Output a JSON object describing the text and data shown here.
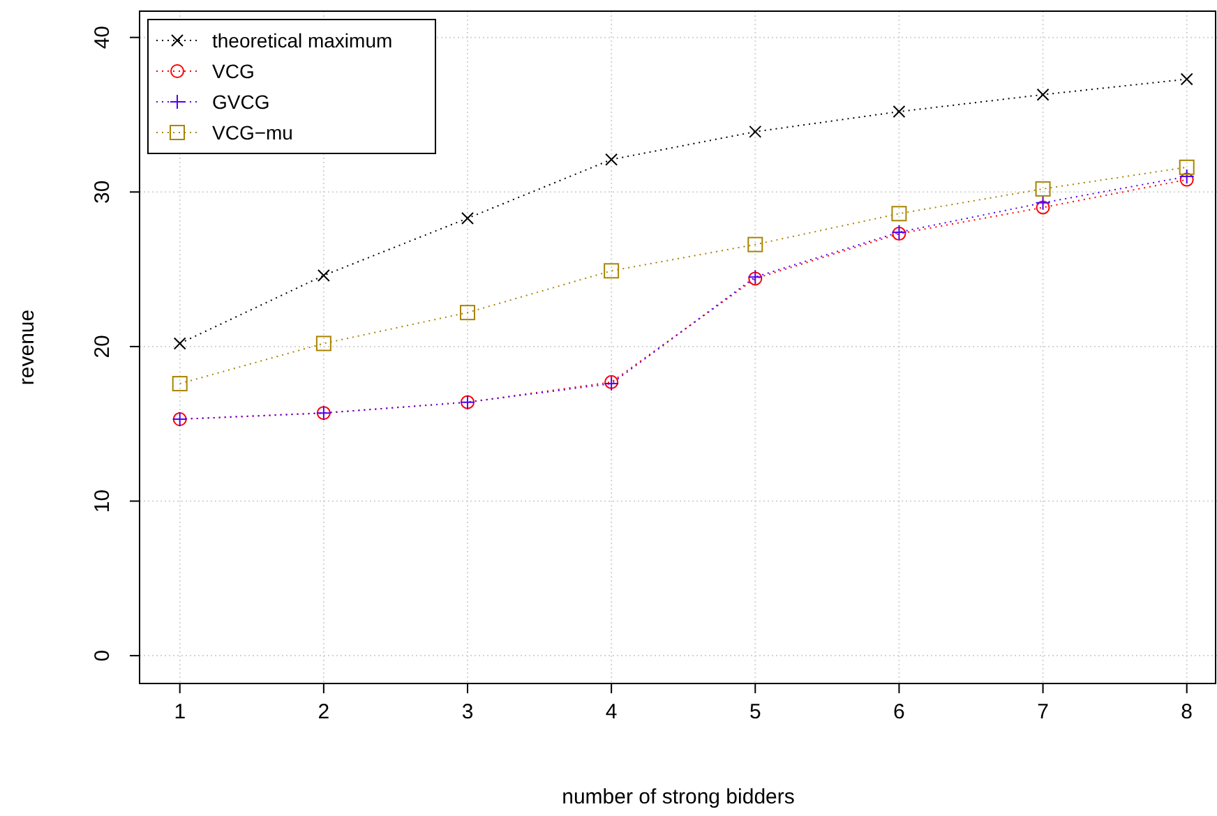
{
  "chart_data": {
    "type": "line",
    "xlabel": "number of strong bidders",
    "ylabel": "revenue",
    "x": [
      1,
      2,
      3,
      4,
      5,
      6,
      7,
      8
    ],
    "xlim": [
      0.72,
      8.21
    ],
    "ylim": [
      -1.8,
      41.7
    ],
    "xticks": [
      1,
      2,
      3,
      4,
      5,
      6,
      7,
      8
    ],
    "yticks": [
      0,
      10,
      20,
      30,
      40
    ],
    "grid": true,
    "legend": "top left",
    "line_style": "dotted",
    "series": [
      {
        "name": "theoretical maximum",
        "color": "#000000",
        "marker": "x",
        "values": [
          20.2,
          24.6,
          28.3,
          32.1,
          33.9,
          35.2,
          36.3,
          37.3
        ]
      },
      {
        "name": "VCG",
        "color": "#ff0000",
        "marker": "circle",
        "values": [
          15.3,
          15.7,
          16.4,
          17.7,
          24.4,
          27.3,
          29.0,
          30.8
        ]
      },
      {
        "name": "GVCG",
        "color": "#5500ee",
        "marker": "cross",
        "values": [
          15.3,
          15.7,
          16.4,
          17.6,
          24.5,
          27.4,
          29.3,
          31.0
        ]
      },
      {
        "name": "VCG−mu",
        "color": "#a88400",
        "marker": "square",
        "values": [
          17.6,
          20.2,
          22.2,
          24.9,
          26.6,
          28.6,
          30.2,
          31.6
        ]
      }
    ]
  }
}
